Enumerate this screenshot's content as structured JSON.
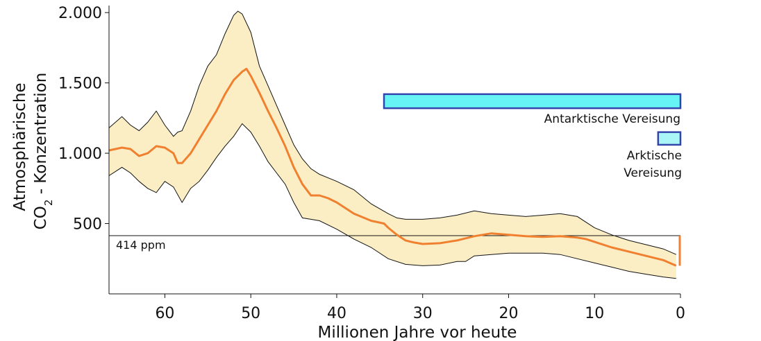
{
  "chart_data": {
    "type": "area",
    "xlabel": "Millionen Jahre vor heute",
    "ylabel_line1": "Atmosphärische",
    "ylabel_line2_prefix": "CO",
    "ylabel_line2_sub": "2",
    "ylabel_line2_suffix": " - Konzentration",
    "xlim": [
      66.5,
      0
    ],
    "ylim": [
      0,
      2050
    ],
    "x_ticks": [
      {
        "value": 60,
        "label": "60"
      },
      {
        "value": 50,
        "label": "50"
      },
      {
        "value": 40,
        "label": "40"
      },
      {
        "value": 30,
        "label": "30"
      },
      {
        "value": 20,
        "label": "20"
      },
      {
        "value": 10,
        "label": "10"
      },
      {
        "value": 0,
        "label": "0"
      }
    ],
    "y_ticks": [
      {
        "value": 500,
        "label": "500"
      },
      {
        "value": 1000,
        "label": "1.000"
      },
      {
        "value": 1500,
        "label": "1.500"
      },
      {
        "value": 2000,
        "label": "2.000"
      }
    ],
    "grid": false,
    "series": [
      {
        "role": "mean",
        "color": "#f08030",
        "x": [
          66.5,
          65,
          64,
          63,
          62,
          61,
          60,
          59,
          58.5,
          58,
          57,
          56,
          55,
          54,
          53,
          52,
          51,
          50.5,
          50,
          49,
          48,
          47,
          46,
          45,
          44,
          43,
          42,
          41,
          40,
          38,
          36,
          34.5,
          34,
          33,
          32,
          31,
          30,
          28,
          26,
          24,
          22,
          20,
          18,
          16,
          14,
          12,
          11,
          10,
          8,
          6,
          4,
          2,
          0.5
        ],
        "y": [
          1020,
          1040,
          1030,
          980,
          1000,
          1050,
          1040,
          1000,
          930,
          930,
          1000,
          1100,
          1200,
          1300,
          1420,
          1520,
          1580,
          1600,
          1550,
          1430,
          1300,
          1180,
          1050,
          900,
          780,
          700,
          700,
          680,
          650,
          570,
          520,
          500,
          470,
          420,
          380,
          365,
          355,
          360,
          380,
          410,
          430,
          420,
          410,
          405,
          410,
          400,
          390,
          370,
          330,
          300,
          270,
          240,
          200
        ]
      },
      {
        "role": "upper",
        "color": "#111111",
        "x": [
          66.5,
          65,
          64,
          63,
          62,
          61,
          60,
          59,
          58.5,
          58,
          57,
          56,
          55,
          54,
          53,
          52,
          51.5,
          51,
          50,
          49,
          48,
          47,
          46,
          45,
          44,
          43,
          42,
          40,
          38,
          36,
          34,
          33,
          32,
          30,
          28,
          26,
          24,
          22,
          20,
          18,
          16,
          14,
          12,
          10,
          8,
          6,
          4,
          2,
          0.5
        ],
        "y": [
          1180,
          1260,
          1200,
          1160,
          1220,
          1300,
          1200,
          1120,
          1150,
          1160,
          1300,
          1480,
          1620,
          1700,
          1850,
          1980,
          2010,
          1990,
          1860,
          1620,
          1480,
          1340,
          1200,
          1060,
          960,
          890,
          850,
          800,
          740,
          640,
          570,
          540,
          530,
          530,
          540,
          560,
          590,
          570,
          560,
          550,
          560,
          570,
          550,
          470,
          420,
          380,
          350,
          320,
          280
        ]
      },
      {
        "role": "lower",
        "color": "#111111",
        "x": [
          66.5,
          65,
          64,
          63,
          62,
          61,
          60,
          59,
          58,
          57,
          56,
          55,
          54,
          53,
          52,
          51,
          50,
          49,
          48,
          47,
          46,
          45,
          44,
          43,
          42,
          40,
          38,
          36,
          34,
          32,
          30,
          28,
          26,
          25,
          24,
          22,
          20,
          18,
          16,
          14,
          12,
          10,
          8,
          6,
          4,
          2,
          0.5
        ],
        "y": [
          840,
          900,
          860,
          800,
          750,
          720,
          800,
          760,
          650,
          750,
          800,
          880,
          970,
          1050,
          1120,
          1210,
          1150,
          1050,
          940,
          860,
          780,
          650,
          540,
          530,
          520,
          460,
          390,
          330,
          250,
          210,
          200,
          205,
          230,
          230,
          270,
          280,
          290,
          290,
          290,
          280,
          250,
          220,
          190,
          160,
          140,
          120,
          110
        ]
      }
    ],
    "reference_line": {
      "value": 414,
      "label": "414 ppm"
    },
    "annotations": [
      {
        "type": "bar",
        "label": "Antarktische Vereisung",
        "x_start": 34.5,
        "x_end": 0,
        "y_bottom": 1320,
        "y_top": 1420,
        "fill": "#66f4f4",
        "stroke": "#3344aa"
      },
      {
        "type": "bar",
        "label_lines": [
          "Arktische",
          "Vereisung"
        ],
        "x_start": 2.6,
        "x_end": 0,
        "y_bottom": 1060,
        "y_top": 1150,
        "fill": "#aaf5f5",
        "stroke": "#3344aa"
      }
    ],
    "colors": {
      "band_fill": "#fbeec4",
      "mean_line": "#f08030",
      "bar_stroke": "#3344aa"
    }
  }
}
